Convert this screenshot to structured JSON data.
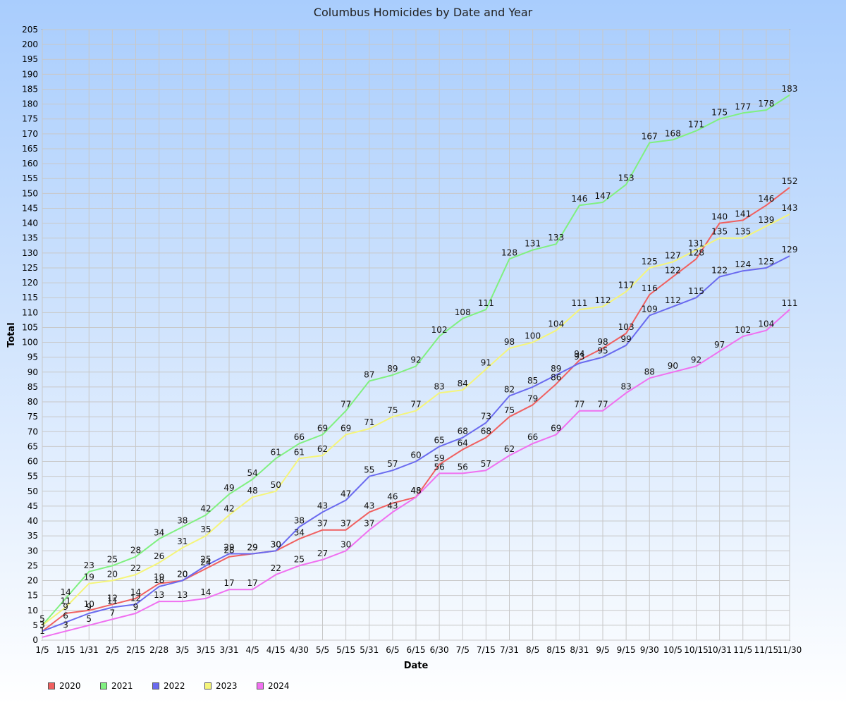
{
  "chart_data": {
    "type": "line",
    "title": "Columbus Homicides by Date and Year",
    "xlabel": "Date",
    "ylabel": "Total",
    "ylim": [
      0,
      205
    ],
    "ytick_step": 5,
    "grid": true,
    "legend_position": "bottom-left",
    "categories": [
      "1/5",
      "1/15",
      "1/31",
      "2/5",
      "2/15",
      "2/28",
      "3/5",
      "3/15",
      "3/31",
      "4/5",
      "4/15",
      "4/30",
      "5/5",
      "5/15",
      "5/31",
      "6/5",
      "6/15",
      "6/30",
      "7/5",
      "7/15",
      "7/31",
      "8/5",
      "8/15",
      "8/31",
      "9/5",
      "9/15",
      "9/30",
      "10/5",
      "10/15",
      "10/31",
      "11/5",
      "11/15",
      "11/30"
    ],
    "series": [
      {
        "name": "2020",
        "color": "#f06060",
        "values": [
          3,
          9,
          10,
          12,
          14,
          19,
          20,
          24,
          28,
          29,
          30,
          34,
          37,
          37,
          43,
          46,
          48,
          59,
          64,
          68,
          75,
          79,
          86,
          94,
          98,
          103,
          116,
          122,
          128,
          140,
          141,
          146,
          152
        ]
      },
      {
        "name": "2021",
        "color": "#80f080",
        "values": [
          5,
          14,
          23,
          25,
          28,
          34,
          38,
          42,
          49,
          54,
          61,
          66,
          69,
          77,
          87,
          89,
          92,
          102,
          108,
          111,
          128,
          131,
          133,
          146,
          147,
          153,
          167,
          168,
          171,
          175,
          177,
          178,
          183
        ]
      },
      {
        "name": "2022",
        "color": "#6a6aef",
        "values": [
          3,
          6,
          9,
          11,
          12,
          18,
          20,
          25,
          29,
          29,
          30,
          38,
          43,
          47,
          55,
          57,
          60,
          65,
          68,
          73,
          82,
          85,
          89,
          93,
          95,
          99,
          109,
          112,
          115,
          122,
          124,
          125,
          129
        ]
      },
      {
        "name": "2023",
        "color": "#f5f57a",
        "values": [
          5,
          11,
          19,
          20,
          22,
          26,
          31,
          35,
          42,
          48,
          50,
          61,
          62,
          69,
          71,
          75,
          77,
          83,
          84,
          91,
          98,
          100,
          104,
          111,
          112,
          117,
          125,
          127,
          131,
          135,
          135,
          139,
          143
        ]
      },
      {
        "name": "2024",
        "color": "#f070f0",
        "values": [
          1,
          3,
          5,
          7,
          9,
          13,
          13,
          14,
          17,
          17,
          22,
          25,
          27,
          30,
          37,
          43,
          48,
          56,
          56,
          57,
          62,
          66,
          69,
          77,
          77,
          83,
          88,
          90,
          92,
          97,
          102,
          104,
          111
        ]
      }
    ]
  }
}
